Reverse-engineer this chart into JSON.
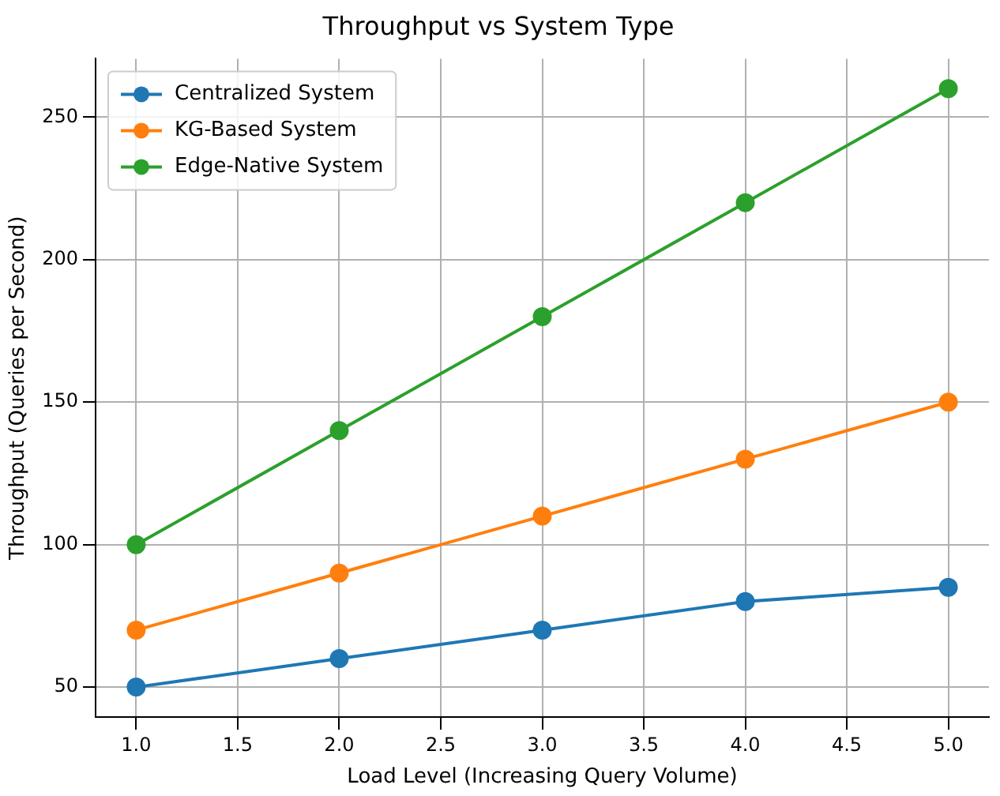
{
  "chart_data": {
    "type": "line",
    "title": "Throughput vs System Type",
    "xlabel": "Load Level (Increasing Query Volume)",
    "ylabel": "Throughput (Queries per Second)",
    "x": [
      1,
      2,
      3,
      4,
      5
    ],
    "series": [
      {
        "name": "Centralized System",
        "color": "#1f77b4",
        "values": [
          50,
          60,
          70,
          80,
          85
        ]
      },
      {
        "name": "KG-Based System",
        "color": "#ff7f0e",
        "values": [
          70,
          90,
          110,
          130,
          150
        ]
      },
      {
        "name": "Edge-Native System",
        "color": "#2ca02c",
        "values": [
          100,
          140,
          180,
          220,
          260
        ]
      }
    ],
    "xlim": [
      0.8,
      5.2
    ],
    "ylim": [
      39.5,
      270.5
    ],
    "xticks": [
      {
        "value": 1,
        "label": "1.0"
      },
      {
        "value": 1.5,
        "label": "1.5"
      },
      {
        "value": 2,
        "label": "2.0"
      },
      {
        "value": 2.5,
        "label": "2.5"
      },
      {
        "value": 3,
        "label": "3.0"
      },
      {
        "value": 3.5,
        "label": "3.5"
      },
      {
        "value": 4,
        "label": "4.0"
      },
      {
        "value": 4.5,
        "label": "4.5"
      },
      {
        "value": 5,
        "label": "5.0"
      }
    ],
    "yticks": [
      50,
      100,
      150,
      200,
      250
    ],
    "grid": true,
    "legend": "top left",
    "marker": "circle",
    "line_style": "solid"
  }
}
